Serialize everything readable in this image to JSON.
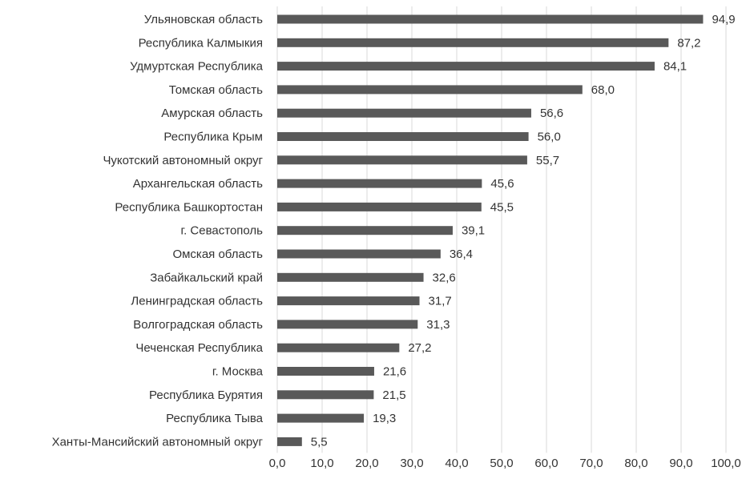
{
  "chart_data": {
    "type": "bar",
    "orientation": "horizontal",
    "categories": [
      "Ульяновская область",
      "Республика Калмыкия",
      "Удмуртская Республика",
      "Томская область",
      "Амурская область",
      "Республика Крым",
      "Чукотский автономный округ",
      "Архангельская область",
      "Республика Башкортостан",
      "г. Севастополь",
      "Омская область",
      "Забайкальский край",
      "Ленинградская область",
      "Волгоградская область",
      "Чеченская Республика",
      "г. Москва",
      "Республика Бурятия",
      "Республика Тыва",
      "Ханты-Мансийский автономный округ"
    ],
    "values": [
      94.9,
      87.2,
      84.1,
      68.0,
      56.6,
      56.0,
      55.7,
      45.6,
      45.5,
      39.1,
      36.4,
      32.6,
      31.7,
      31.3,
      27.2,
      21.6,
      21.5,
      19.3,
      5.5
    ],
    "value_labels": [
      "94,9",
      "87,2",
      "84,1",
      "68,0",
      "56,6",
      "56,0",
      "55,7",
      "45,6",
      "45,5",
      "39,1",
      "36,4",
      "32,6",
      "31,7",
      "31,3",
      "27,2",
      "21,6",
      "21,5",
      "19,3",
      "5,5"
    ],
    "xlim": [
      0,
      100
    ],
    "x_ticks": [
      "0,0",
      "10,0",
      "20,0",
      "30,0",
      "40,0",
      "50,0",
      "60,0",
      "70,0",
      "80,0",
      "90,0",
      "100,0"
    ],
    "x_tick_values": [
      0,
      10,
      20,
      30,
      40,
      50,
      60,
      70,
      80,
      90,
      100
    ],
    "title": "",
    "xlabel": "",
    "ylabel": "",
    "grid": "vertical",
    "legend": "none",
    "bar_color": "#595959",
    "grid_color": "#d9d9d9",
    "text_color": "#333333"
  }
}
